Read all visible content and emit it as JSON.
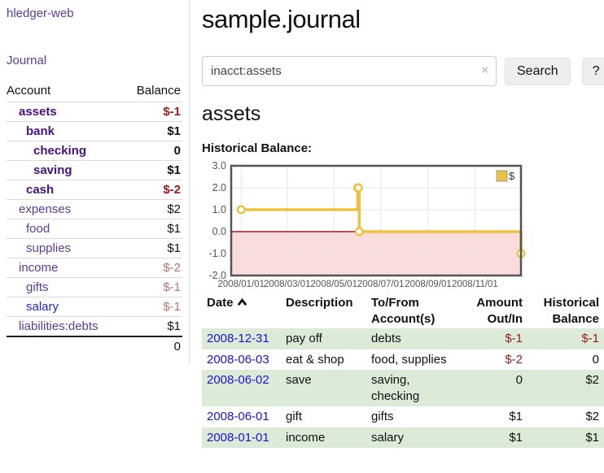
{
  "app_title": "hledger-web",
  "sidebar": {
    "journal_link": "Journal",
    "accounts_table": {
      "headers": {
        "account": "Account",
        "balance": "Balance"
      },
      "rows": [
        {
          "account": "assets",
          "balance": "$-1",
          "indent": 1,
          "matched": true,
          "balance_style": "negstrong"
        },
        {
          "account": "bank",
          "balance": "$1",
          "indent": 2,
          "matched": true,
          "balance_style": "pos"
        },
        {
          "account": "checking",
          "balance": "0",
          "indent": 3,
          "matched": true,
          "balance_style": "pos"
        },
        {
          "account": "saving",
          "balance": "$1",
          "indent": 3,
          "matched": true,
          "balance_style": "pos"
        },
        {
          "account": "cash",
          "balance": "$-2",
          "indent": 2,
          "matched": true,
          "balance_style": "negstrong"
        },
        {
          "account": "expenses",
          "balance": "$2",
          "indent": 1,
          "matched": false,
          "balance_style": "pos"
        },
        {
          "account": "food",
          "balance": "$1",
          "indent": 2,
          "matched": false,
          "balance_style": "pos"
        },
        {
          "account": "supplies",
          "balance": "$1",
          "indent": 2,
          "matched": false,
          "balance_style": "pos"
        },
        {
          "account": "income",
          "balance": "$-2",
          "indent": 1,
          "matched": false,
          "balance_style": "negmuted"
        },
        {
          "account": "gifts",
          "balance": "$-1",
          "indent": 2,
          "matched": false,
          "balance_style": "negmuted"
        },
        {
          "account": "salary",
          "balance": "$-1",
          "indent": 2,
          "matched": false,
          "balance_style": "negmuted",
          "link_style": "blue"
        },
        {
          "account": "liabilities:debts",
          "balance": "$1",
          "indent": 1,
          "matched": false,
          "balance_style": "pos"
        }
      ],
      "total": "0"
    }
  },
  "main": {
    "title": "sample.journal",
    "search": {
      "value": "inacct:assets",
      "clear_icon": "×",
      "search_button": "Search",
      "help_button": "?"
    },
    "account_heading": "assets",
    "section_label": "Historical Balance:"
  },
  "chart_data": {
    "type": "line",
    "step": true,
    "title": "Historical Balance",
    "series": [
      {
        "name": "$",
        "points": [
          {
            "date": "2008-01-01",
            "value": 1
          },
          {
            "date": "2008-06-01",
            "value": 2
          },
          {
            "date": "2008-06-02",
            "value": 2
          },
          {
            "date": "2008-06-03",
            "value": 0
          },
          {
            "date": "2008-12-31",
            "value": -1
          }
        ]
      }
    ],
    "ylim": [
      -2,
      3
    ],
    "yticks": [
      "3.0",
      "2.0",
      "1.0",
      "0.0",
      "-1.0",
      "-2.0"
    ],
    "xticks": [
      {
        "label": "2008/01/01",
        "date": "2008-01-01"
      },
      {
        "label": "2008/03/01",
        "date": "2008-03-01"
      },
      {
        "label": "2008/05/01",
        "date": "2008-05-01"
      },
      {
        "label": "2008/07/01",
        "date": "2008-07-01"
      },
      {
        "label": "2008/09/01",
        "date": "2008-09-01"
      },
      {
        "label": "2008/11/01",
        "date": "2008-11-01"
      }
    ],
    "xmin": "2007-12-19",
    "xmax": "2008-12-31",
    "legend": {
      "label": "$",
      "position": "top-right"
    },
    "colors": {
      "line": "#edc240",
      "marker_fill": "#ffffff",
      "negative_fill": "#fbdcdc",
      "zero_line": "#a81414",
      "grid": "#e6e6e6",
      "border": "#545454",
      "tick_text": "#545454",
      "legend_box_border": "#999999"
    }
  },
  "register": {
    "headers": {
      "date": "Date",
      "description": "Description",
      "tofrom": "To/From Account(s)",
      "amount": "Amount Out/In",
      "balance": "Historical Balance"
    },
    "rows": [
      {
        "date": "2008-12-31",
        "description": "pay off",
        "tofrom": "debts",
        "amount": "$-1",
        "balance": "$-1",
        "amount_neg": true,
        "balance_neg": true
      },
      {
        "date": "2008-06-03",
        "description": "eat & shop",
        "tofrom": "food, supplies",
        "amount": "$-2",
        "balance": "0",
        "amount_neg": true,
        "balance_neg": false
      },
      {
        "date": "2008-06-02",
        "description": "save",
        "tofrom": "saving, checking",
        "amount": "0",
        "balance": "$2",
        "amount_neg": false,
        "balance_neg": false
      },
      {
        "date": "2008-06-01",
        "description": "gift",
        "tofrom": "gifts",
        "amount": "$1",
        "balance": "$2",
        "amount_neg": false,
        "balance_neg": false
      },
      {
        "date": "2008-01-01",
        "description": "income",
        "tofrom": "salary",
        "amount": "$1",
        "balance": "$1",
        "amount_neg": false,
        "balance_neg": false
      }
    ]
  }
}
